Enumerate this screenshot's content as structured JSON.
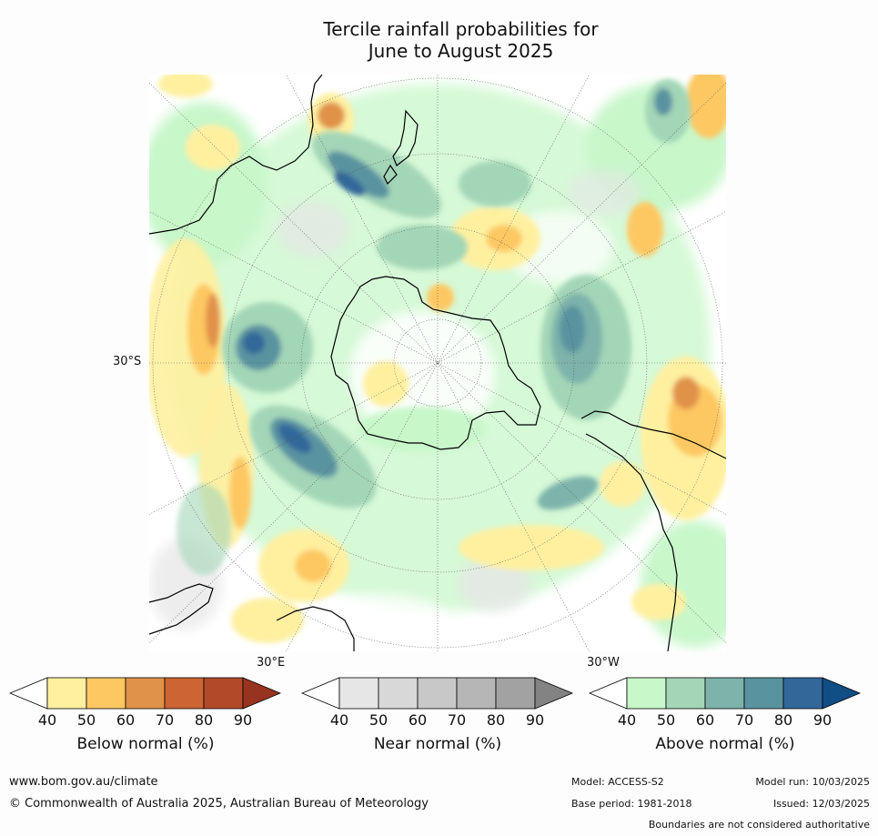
{
  "title_line1": "Tercile rainfall probabilities for",
  "title_line2": "June to August 2025",
  "lat_label": "30°S",
  "lon_label_east": "30°E",
  "lon_label_west": "30°W",
  "colorbars": [
    {
      "title": "Below normal (%)",
      "ticks": [
        "40",
        "50",
        "60",
        "70",
        "80",
        "90"
      ],
      "colors": [
        "#fff0a0",
        "#fdc862",
        "#e09248",
        "#cc6533",
        "#b24a2a",
        "#98331f"
      ]
    },
    {
      "title": "Near normal (%)",
      "ticks": [
        "40",
        "50",
        "60",
        "70",
        "80",
        "90"
      ],
      "colors": [
        "#e6e6e6",
        "#d8d8d8",
        "#c8c8c8",
        "#b6b6b6",
        "#a2a2a2",
        "#838383"
      ]
    },
    {
      "title": "Above normal (%)",
      "ticks": [
        "40",
        "50",
        "60",
        "70",
        "80",
        "90"
      ],
      "colors": [
        "#c8f7ca",
        "#a3d5b7",
        "#7db3aa",
        "#5a93a0",
        "#33679a",
        "#124e86"
      ]
    }
  ],
  "footer": {
    "url": "www.bom.gov.au/climate",
    "copyright": "© Commonwealth of Australia 2025, Australian Bureau of Meteorology",
    "model": "Model: ACCESS-S2",
    "base_period": "Base period: 1981-2018",
    "model_run": "Model run: 10/03/2025",
    "issued": "Issued: 12/03/2025",
    "disclaimer": "Boundaries are not considered authoritative"
  }
}
